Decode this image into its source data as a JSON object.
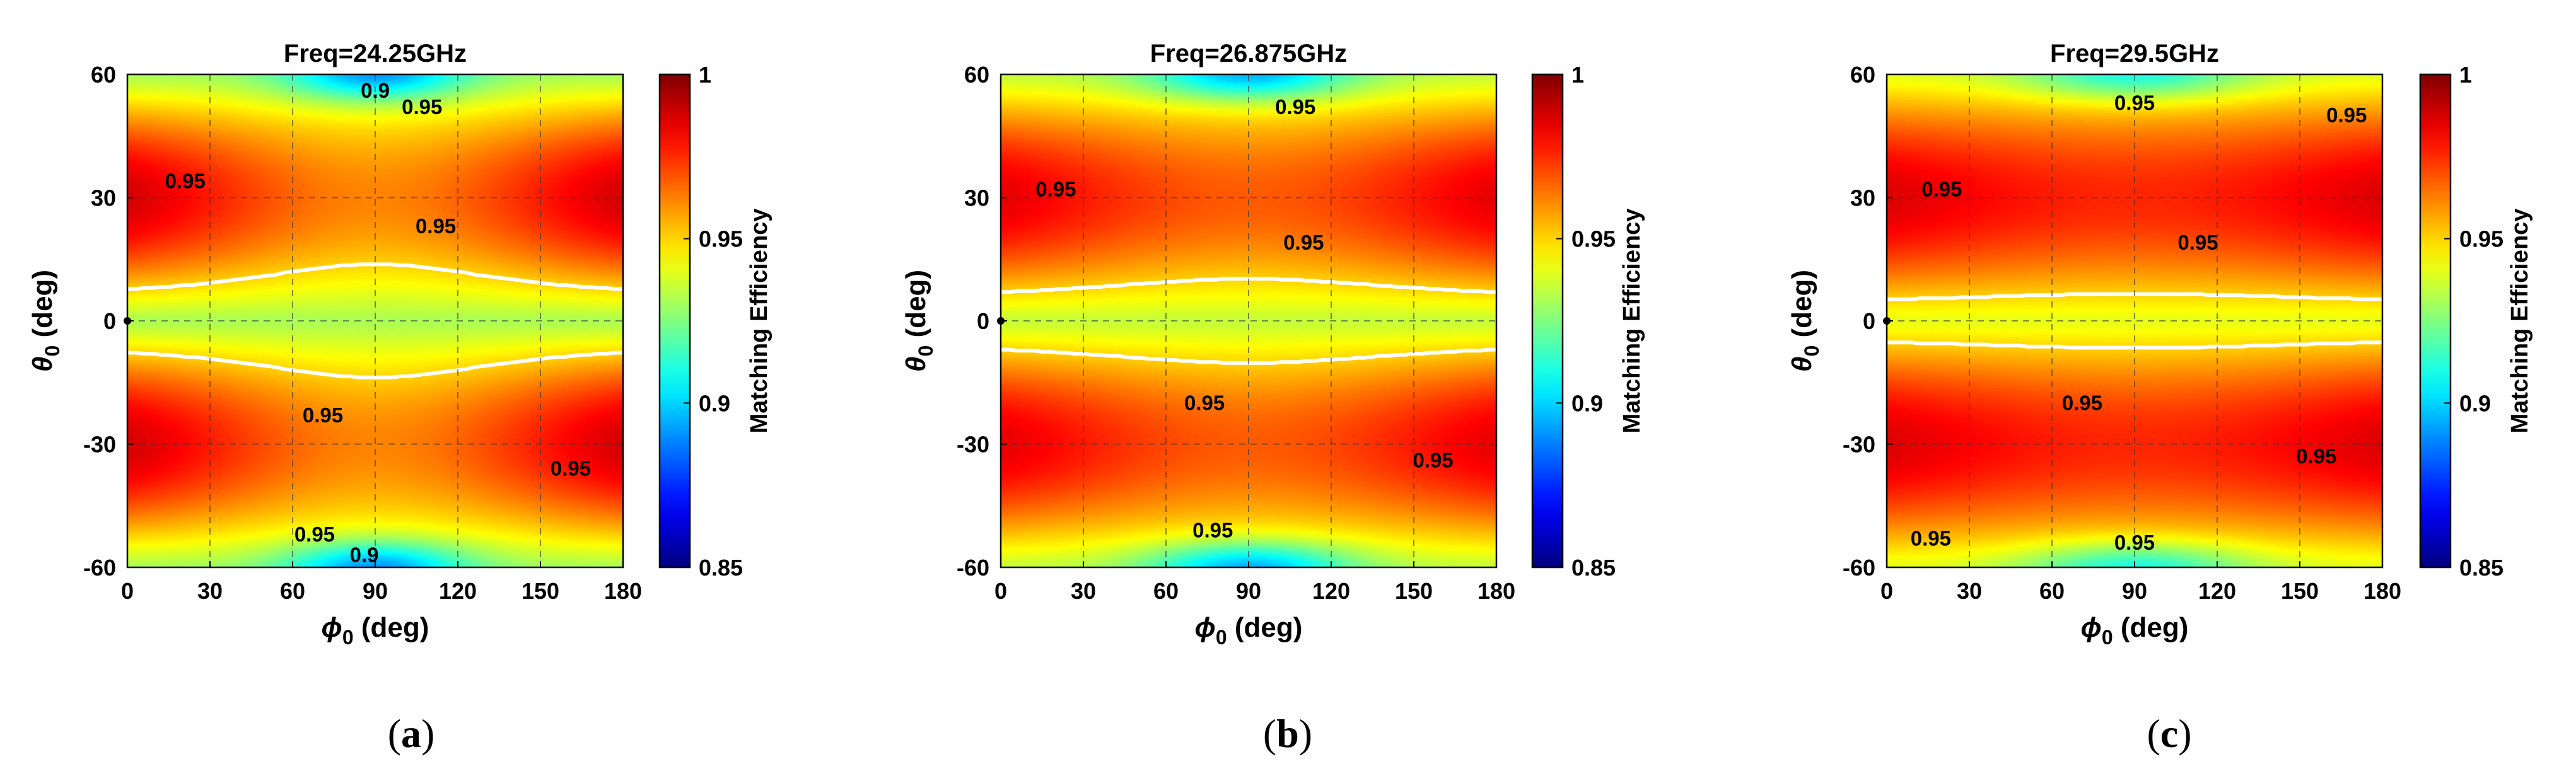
{
  "chart_data": [
    {
      "type": "heatmap",
      "title": "Freq=24.25GHz",
      "caption_letter": "a",
      "xlabel": "ϕ0 (deg)",
      "ylabel": "θ0 (deg)",
      "x_sym": "ϕ",
      "y_sym": "θ",
      "x_sub": "0",
      "y_sub": "0",
      "unit_label": "(deg)",
      "xlim": [
        0,
        180
      ],
      "ylim": [
        -60,
        60
      ],
      "xticks": [
        0,
        30,
        60,
        90,
        120,
        150,
        180
      ],
      "yticks": [
        -60,
        -30,
        0,
        30,
        60
      ],
      "grid": true,
      "colorbar": {
        "label": "Matching Efficiency",
        "range": [
          0.85,
          1
        ],
        "ticks": [
          "0.85",
          "0.9",
          "0.95",
          "1"
        ]
      },
      "model": {
        "base": 0.931,
        "amp": 0.067,
        "phi_peak": 90,
        "phi_width": 80,
        "phi_depth": 0.54,
        "center_dip": 0.04
      },
      "contour_labels": [
        {
          "text": "0.9",
          "phi": 90,
          "theta": 56
        },
        {
          "text": "0.95",
          "phi": 107,
          "theta": 52
        },
        {
          "text": "0.95",
          "phi": 21,
          "theta": 34
        },
        {
          "text": "0.95",
          "phi": 112,
          "theta": 23
        },
        {
          "text": "0.95",
          "phi": 71,
          "theta": -23
        },
        {
          "text": "0.95",
          "phi": 161,
          "theta": -36
        },
        {
          "text": "0.95",
          "phi": 68,
          "theta": -52
        },
        {
          "text": "0.9",
          "phi": 86,
          "theta": -57
        }
      ]
    },
    {
      "type": "heatmap",
      "title": "Freq=26.875GHz",
      "caption_letter": "b",
      "xlabel": "ϕ0 (deg)",
      "ylabel": "θ0 (deg)",
      "x_sym": "ϕ",
      "y_sym": "θ",
      "x_sub": "0",
      "y_sub": "0",
      "unit_label": "(deg)",
      "xlim": [
        0,
        180
      ],
      "ylim": [
        -60,
        60
      ],
      "xticks": [
        0,
        30,
        60,
        90,
        120,
        150,
        180
      ],
      "yticks": [
        -60,
        -30,
        0,
        30,
        60
      ],
      "grid": true,
      "colorbar": {
        "label": "Matching Efficiency",
        "range": [
          0.85,
          1
        ],
        "ticks": [
          "0.85",
          "0.9",
          "0.95",
          "1"
        ]
      },
      "model": {
        "base": 0.935,
        "amp": 0.06,
        "phi_peak": 90,
        "phi_width": 90,
        "phi_depth": 0.45,
        "center_dip": 0.04
      },
      "contour_labels": [
        {
          "text": "0.95",
          "phi": 107,
          "theta": 52
        },
        {
          "text": "0.95",
          "phi": 20,
          "theta": 32
        },
        {
          "text": "0.95",
          "phi": 110,
          "theta": 19
        },
        {
          "text": "0.95",
          "phi": 74,
          "theta": -20
        },
        {
          "text": "0.95",
          "phi": 157,
          "theta": -34
        },
        {
          "text": "0.95",
          "phi": 77,
          "theta": -51
        }
      ]
    },
    {
      "type": "heatmap",
      "title": "Freq=29.5GHz",
      "caption_letter": "c",
      "xlabel": "ϕ0 (deg)",
      "ylabel": "θ0 (deg)",
      "x_sym": "ϕ",
      "y_sym": "θ",
      "x_sub": "0",
      "y_sub": "0",
      "unit_label": "(deg)",
      "xlim": [
        0,
        180
      ],
      "ylim": [
        -60,
        60
      ],
      "xticks": [
        0,
        30,
        60,
        90,
        120,
        150,
        180
      ],
      "yticks": [
        -60,
        -30,
        0,
        30,
        60
      ],
      "grid": true,
      "colorbar": {
        "label": "Matching Efficiency",
        "range": [
          0.85,
          1
        ],
        "ticks": [
          "0.85",
          "0.9",
          "0.95",
          "1"
        ]
      },
      "model": {
        "base": 0.94,
        "amp": 0.055,
        "phi_peak": 90,
        "phi_width": 100,
        "phi_depth": 0.35,
        "center_dip": 0.03
      },
      "contour_labels": [
        {
          "text": "0.95",
          "phi": 90,
          "theta": 53
        },
        {
          "text": "0.95",
          "phi": 167,
          "theta": 50
        },
        {
          "text": "0.95",
          "phi": 20,
          "theta": 32
        },
        {
          "text": "0.95",
          "phi": 113,
          "theta": 19
        },
        {
          "text": "0.95",
          "phi": 71,
          "theta": -20
        },
        {
          "text": "0.95",
          "phi": 156,
          "theta": -33
        },
        {
          "text": "0.95",
          "phi": 16,
          "theta": -53
        },
        {
          "text": "0.95",
          "phi": 90,
          "theta": -54
        }
      ]
    }
  ]
}
